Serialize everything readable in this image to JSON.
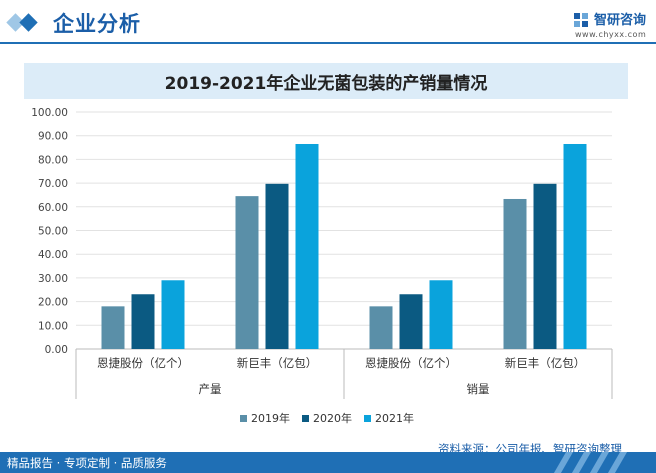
{
  "header": {
    "title": "企业分析",
    "brand_name": "智研咨询",
    "brand_url": "www.chyxx.com"
  },
  "chart_data": {
    "type": "bar",
    "title": "2019-2021年企业无菌包装的产销量情况",
    "groups": [
      {
        "label": "产量",
        "categories": [
          "恩捷股份（亿个）",
          "新巨丰（亿包）"
        ]
      },
      {
        "label": "销量",
        "categories": [
          "恩捷股份（亿个）",
          "新巨丰（亿包）"
        ]
      }
    ],
    "series": [
      {
        "name": "2019年",
        "color": "#5a8fa8",
        "values": [
          18.0,
          64.5,
          18.0,
          63.3
        ]
      },
      {
        "name": "2020年",
        "color": "#0b5a82",
        "values": [
          23.1,
          69.7,
          23.1,
          69.7
        ]
      },
      {
        "name": "2021年",
        "color": "#0aa3dc",
        "values": [
          29.0,
          86.5,
          29.0,
          86.5
        ]
      }
    ],
    "ylim": [
      0,
      100
    ],
    "yticks": [
      "0.00",
      "10.00",
      "20.00",
      "30.00",
      "40.00",
      "50.00",
      "60.00",
      "70.00",
      "80.00",
      "90.00",
      "100.00"
    ],
    "grid": true,
    "legend_position": "bottom"
  },
  "source": "资料来源：公司年报、智研咨询整理",
  "footer": "精品报告 · 专项定制 · 品质服务"
}
